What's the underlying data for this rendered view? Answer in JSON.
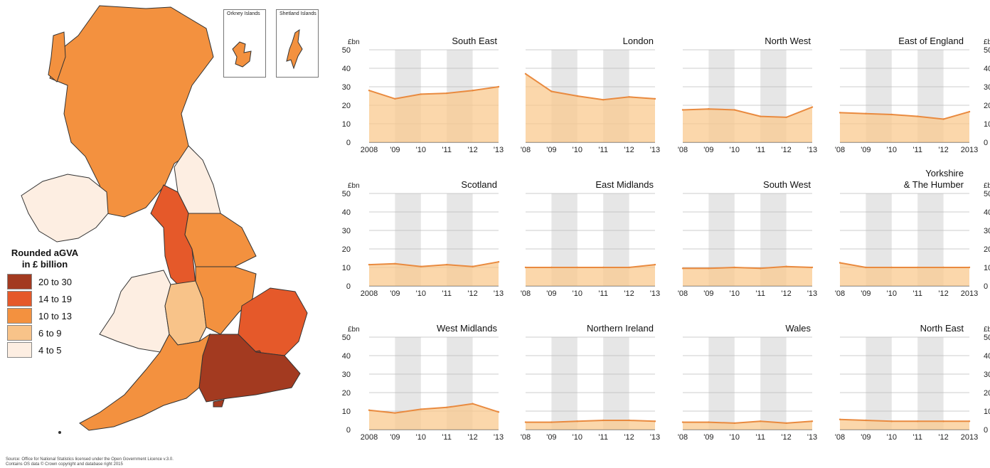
{
  "legend": {
    "title_line1": "Rounded aGVA",
    "title_line2": "in £ billion",
    "items": [
      {
        "label": "20 to 30",
        "color": "#A33A20"
      },
      {
        "label": "14 to 19",
        "color": "#E5592A"
      },
      {
        "label": "10 to 13",
        "color": "#F3913F"
      },
      {
        "label": "6 to 9",
        "color": "#F8C389"
      },
      {
        "label": "4 to 5",
        "color": "#FDEEE2"
      }
    ]
  },
  "insets": {
    "orkney": "Orkney Islands",
    "shetland": "Shetland Islands"
  },
  "source": {
    "line1": "Source: Office for National Statistics licensed under the Open Government Licence v.3.0.",
    "line2": "Contains OS data © Crown copyright and database right 2015"
  },
  "colors": {
    "area_fill": "#F9C98F",
    "line": "#E98A3F",
    "shade": "#E6E6E6",
    "grid": "#BBBBBB"
  },
  "chart_data": [
    {
      "type": "area",
      "title": "South East",
      "ylabel": "£bn",
      "ylim": [
        0,
        50
      ],
      "x_labels": [
        "2008",
        "'09",
        "'10",
        "'11",
        "'12",
        "'13"
      ],
      "values": [
        28,
        23.5,
        26,
        26.5,
        28,
        30
      ]
    },
    {
      "type": "area",
      "title": "London",
      "ylabel": "",
      "ylim": [
        0,
        50
      ],
      "x_labels": [
        "'08",
        "'09",
        "'10",
        "'11",
        "'12",
        "'13"
      ],
      "values": [
        37,
        27.5,
        25,
        23,
        24.5,
        23.5
      ]
    },
    {
      "type": "area",
      "title": "North West",
      "ylabel": "",
      "ylim": [
        0,
        50
      ],
      "x_labels": [
        "'08",
        "'09",
        "'10",
        "'11",
        "'12",
        "'13"
      ],
      "values": [
        17.5,
        18,
        17.5,
        14,
        13.5,
        19
      ]
    },
    {
      "type": "area",
      "title": "East of England",
      "ylabel": "£bn",
      "ylim": [
        0,
        50
      ],
      "x_labels": [
        "'08",
        "'09",
        "'10",
        "'11",
        "'12",
        "2013"
      ],
      "values": [
        16,
        15.5,
        15,
        14,
        12.5,
        16.5
      ]
    },
    {
      "type": "area",
      "title": "Scotland",
      "ylabel": "£bn",
      "ylim": [
        0,
        50
      ],
      "x_labels": [
        "2008",
        "'09",
        "'10",
        "'11",
        "'12",
        "'13"
      ],
      "values": [
        11.5,
        12,
        10.5,
        11.5,
        10.5,
        13
      ]
    },
    {
      "type": "area",
      "title": "East Midlands",
      "ylabel": "",
      "ylim": [
        0,
        50
      ],
      "x_labels": [
        "'08",
        "'09",
        "'10",
        "'11",
        "'12",
        "'13"
      ],
      "values": [
        10,
        10,
        10,
        10,
        10,
        11.5
      ]
    },
    {
      "type": "area",
      "title": "South West",
      "ylabel": "",
      "ylim": [
        0,
        50
      ],
      "x_labels": [
        "'08",
        "'09",
        "'10",
        "'11",
        "'12",
        "'13"
      ],
      "values": [
        9.5,
        9.5,
        10,
        9.5,
        10.5,
        10
      ]
    },
    {
      "type": "area",
      "title": "Yorkshire & The Humber",
      "ylabel": "£bn",
      "ylim": [
        0,
        50
      ],
      "x_labels": [
        "'08",
        "'09",
        "'10",
        "'11",
        "'12",
        "2013"
      ],
      "values": [
        12.5,
        10,
        10,
        10,
        10,
        10
      ]
    },
    {
      "type": "area",
      "title": "West Midlands",
      "ylabel": "£bn",
      "ylim": [
        0,
        50
      ],
      "x_labels": [
        "2008",
        "'09",
        "'10",
        "'11",
        "'12",
        "'13"
      ],
      "values": [
        10.5,
        9,
        11,
        12,
        14,
        9.5
      ]
    },
    {
      "type": "area",
      "title": "Northern Ireland",
      "ylabel": "",
      "ylim": [
        0,
        50
      ],
      "x_labels": [
        "'08",
        "'09",
        "'10",
        "'11",
        "'12",
        "'13"
      ],
      "values": [
        4,
        4,
        4.5,
        5,
        5,
        4.5
      ]
    },
    {
      "type": "area",
      "title": "Wales",
      "ylabel": "",
      "ylim": [
        0,
        50
      ],
      "x_labels": [
        "'08",
        "'09",
        "'10",
        "'11",
        "'12",
        "'13"
      ],
      "values": [
        4,
        4,
        3.5,
        4.5,
        3.5,
        4.5
      ]
    },
    {
      "type": "area",
      "title": "North East",
      "ylabel": "£bn",
      "ylim": [
        0,
        50
      ],
      "x_labels": [
        "'08",
        "'09",
        "'10",
        "'11",
        "'12",
        "2013"
      ],
      "values": [
        5.5,
        5,
        4.5,
        4.5,
        4.5,
        4.5
      ]
    }
  ]
}
